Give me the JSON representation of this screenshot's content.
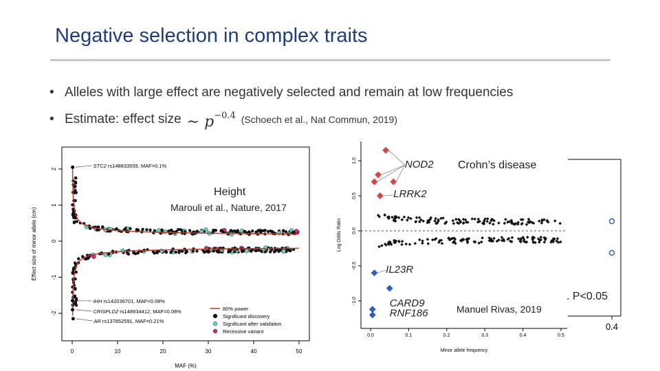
{
  "slide": {
    "title": "Negative selection in complex traits",
    "bullets": [
      "Alleles with large effect are negatively selected and remain at low frequencies",
      "Estimate: effect size"
    ],
    "formula_main": "∼ p",
    "formula_exp": "−0.4",
    "formula_cite": "(Schoech et al., Nat Commun, 2019)"
  },
  "overlays": {
    "height_label": "Height",
    "height_cite": "Marouli et al., Nature, 2017",
    "crohn_label": "Crohn’s disease",
    "crohn_cite": "Manuel Rivas, 2019",
    "p_label": ". P<0.05",
    "right_tick": "0.4"
  },
  "chart_data": [
    {
      "type": "scatter",
      "xlabel": "MAF (%)",
      "ylabel": "Effect size of minor allele (cm)",
      "xlim": [
        0,
        50
      ],
      "ylim": [
        -2.3,
        2.3
      ],
      "x_ticks": [
        0,
        10,
        20,
        30,
        40,
        50
      ],
      "y_ticks": [
        -2,
        -1,
        0,
        1,
        2
      ],
      "annotations": [
        {
          "gene": "STC2",
          "text": " rs148833559, MAF=0.1%",
          "x": 0.1,
          "y": 2.05
        },
        {
          "gene": "IHH",
          "text": " rs142036701, MAF=0.08%",
          "x": 0.08,
          "y": -1.65
        },
        {
          "gene": "CRISPLD2",
          "text": " rs148934412, MAF=0.08%",
          "x": 0.08,
          "y": -1.9
        },
        {
          "gene": "AR",
          "text": " rs137852591, MAF=0.21%",
          "x": 0.21,
          "y": -2.15
        }
      ],
      "legend": [
        "80% power",
        "Significant discovery",
        "Significant after validation",
        "Recessive variant"
      ],
      "colors": {
        "power": "#c0392b",
        "discovery": "#111111",
        "validation": "#5fd3c4",
        "recessive": "#c2337c"
      }
    },
    {
      "type": "scatter",
      "xlabel": "Minor allele frequency",
      "ylabel": "Log Odds Ratio",
      "xlim": [
        0,
        0.5
      ],
      "ylim": [
        -1.25,
        1.25
      ],
      "x_ticks": [
        0.0,
        0.1,
        0.2,
        0.3,
        0.4,
        0.5
      ],
      "y_ticks": [
        -1.0,
        -0.5,
        0.0,
        0.5,
        1.0
      ],
      "red_points": [
        [
          0.04,
          1.15
        ],
        [
          0.02,
          0.8
        ],
        [
          0.01,
          0.7
        ],
        [
          0.06,
          0.7
        ],
        [
          0.025,
          0.5
        ]
      ],
      "blue_points": [
        [
          0.01,
          -0.6
        ],
        [
          0.05,
          -0.82
        ],
        [
          0.005,
          -1.12
        ],
        [
          0.005,
          -1.2
        ]
      ],
      "labels": [
        {
          "text": "NOD2",
          "x": 0.09,
          "y": 0.9
        },
        {
          "text": "LRRK2",
          "x": 0.06,
          "y": 0.48
        },
        {
          "text": "IL23R",
          "x": 0.04,
          "y": -0.6
        },
        {
          "text": "CARD9",
          "x": 0.05,
          "y": -1.08
        },
        {
          "text": "RNF186",
          "x": 0.05,
          "y": -1.22
        }
      ],
      "colors": {
        "risk": "#d64541",
        "protective": "#2c5fc4",
        "other": "#111111"
      }
    }
  ]
}
